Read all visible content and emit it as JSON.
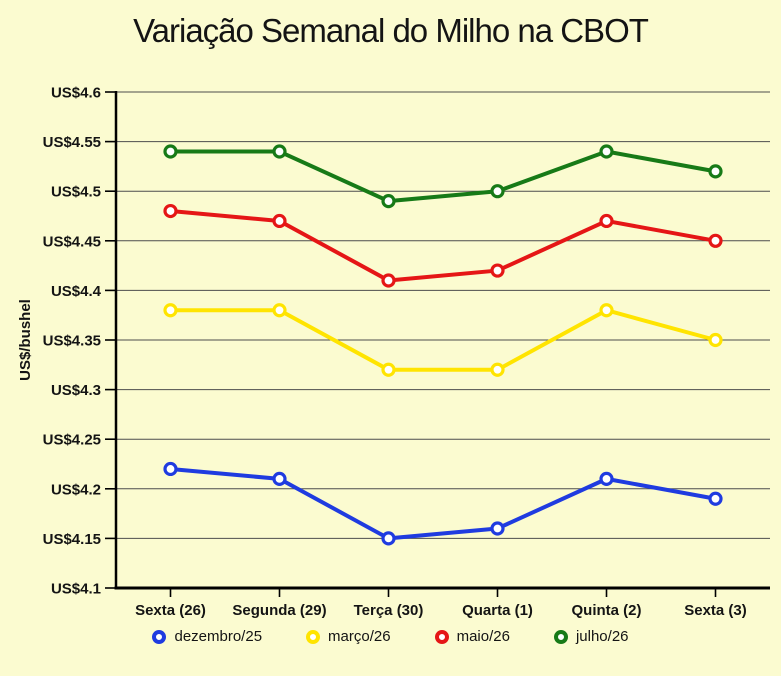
{
  "page": {
    "background_color": "#FBFBD0",
    "text_color": "#141414"
  },
  "chart_data": {
    "type": "line",
    "title": "Variação Semanal do Milho na CBOT",
    "xlabel": "",
    "ylabel": "US$/bushel",
    "categories": [
      "Sexta (26)",
      "Segunda (29)",
      "Terça (30)",
      "Quarta (1)",
      "Quinta (2)",
      "Sexta (3)"
    ],
    "series": [
      {
        "name": "dezembro/25",
        "color": "#1F3BE0",
        "values": [
          4.22,
          4.21,
          4.15,
          4.16,
          4.21,
          4.19
        ]
      },
      {
        "name": "março/26",
        "color": "#FFE400",
        "values": [
          4.38,
          4.38,
          4.32,
          4.32,
          4.38,
          4.35
        ]
      },
      {
        "name": "maio/26",
        "color": "#E51616",
        "values": [
          4.48,
          4.47,
          4.41,
          4.42,
          4.47,
          4.45
        ]
      },
      {
        "name": "julho/26",
        "color": "#177A17",
        "values": [
          4.54,
          4.54,
          4.49,
          4.5,
          4.54,
          4.52
        ]
      }
    ],
    "ylim": [
      4.1,
      4.6
    ],
    "ytick_step": 0.05,
    "ytick_prefix": "US$",
    "grid": true,
    "gridline_color": "#4d4d4d",
    "axis_color": "#000000",
    "legend_position": "bottom",
    "marker_style": "open-circle"
  }
}
